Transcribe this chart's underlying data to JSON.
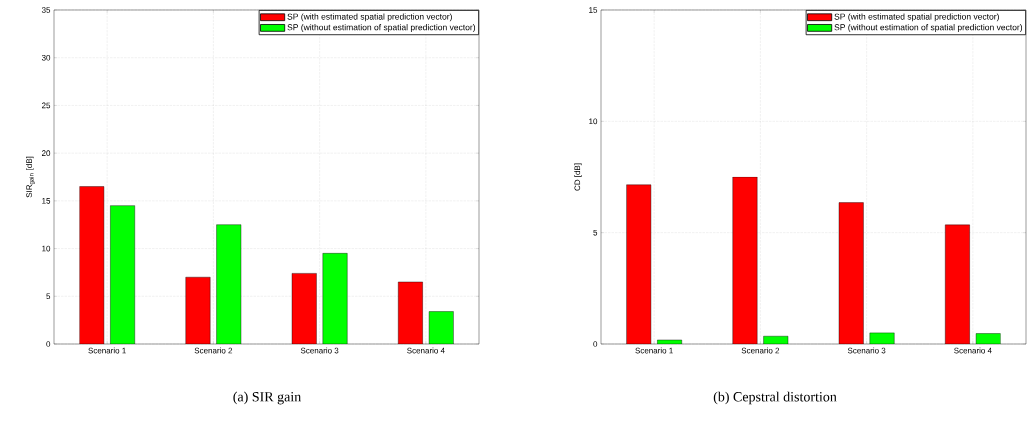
{
  "chart_data": [
    {
      "type": "bar",
      "categories": [
        "Scenario 1",
        "Scenario 2",
        "Scenario 3",
        "Scenario 4"
      ],
      "ylabel": "SIR$_{gain}$ [dB]",
      "ylim": [
        0,
        35
      ],
      "yticks": [
        0,
        5,
        10,
        15,
        20,
        25,
        30,
        35
      ],
      "grid": true,
      "legend": "top right",
      "series": [
        {
          "name": "SP (with estimated spatial prediction vector)",
          "color": "#ff0000",
          "values": [
            16.5,
            7,
            7.4,
            6.5
          ]
        },
        {
          "name": "SP (without estimation of spatial prediction vector)",
          "color": "#00ff00",
          "values": [
            14.5,
            12.5,
            9.5,
            3.4
          ]
        }
      ],
      "annotations": [
        "(a) SIR gain"
      ]
    },
    {
      "type": "bar",
      "categories": [
        "Scenario 1",
        "Scenario 2",
        "Scenario 3",
        "Scenario 4"
      ],
      "ylabel": "CD [dB]",
      "ylim": [
        0,
        15
      ],
      "yticks": [
        0,
        5,
        10,
        15
      ],
      "grid": true,
      "legend": "top right",
      "series": [
        {
          "name": "SP (with estimated spatial prediction vector)",
          "color": "#ff0000",
          "values": [
            7.15,
            7.5,
            6.35,
            5.35
          ]
        },
        {
          "name": "SP (without estimation of spatial prediction vector)",
          "color": "#00ff00",
          "values": [
            0.18,
            0.35,
            0.5,
            0.47
          ]
        }
      ],
      "annotations": [
        "(b) Cepstral distortion"
      ]
    }
  ]
}
